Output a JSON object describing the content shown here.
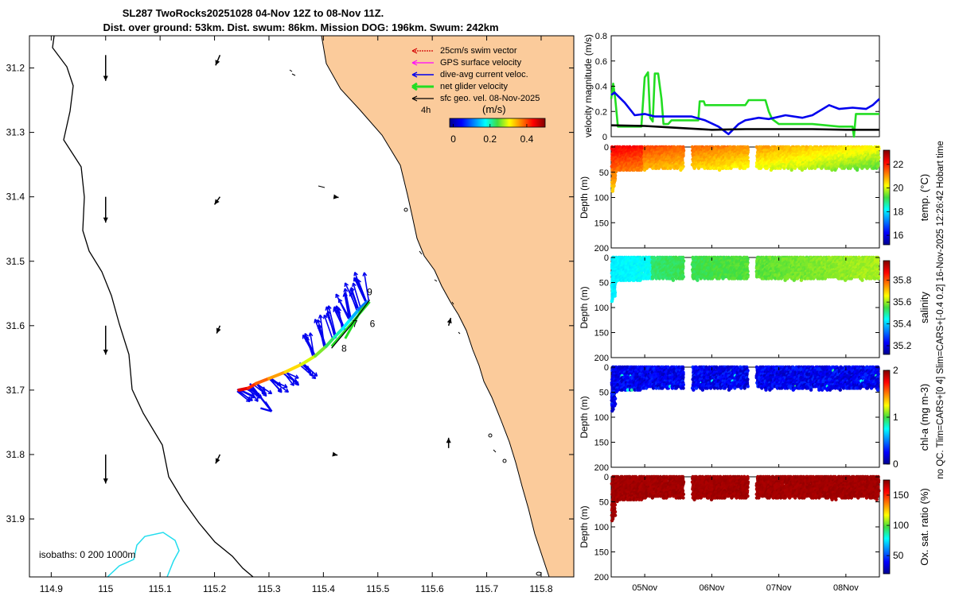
{
  "title": {
    "line1": "SL287 TwoRocks20251028 04-Nov 12Z to 08-Nov 11Z.",
    "line2": "Dist. over ground: 53km. Dist. swum: 86km. Mission DOG: 196km. Swum: 242km"
  },
  "side_note": "no QC. Tlim=CARS+[0 4] Slim=CARS+[-0.4 0.2] 16-Nov-2025 12:26:42 Hobart time",
  "colors": {
    "land": "#fbcb9b",
    "swim": "#d40000",
    "gps": "#ff00ff",
    "dive": "#0000ee",
    "net": "#22dd22",
    "sfc": "#000000",
    "isobath": "#22ddee"
  },
  "chart_data": [
    {
      "type": "map",
      "name": "track-map",
      "lon_ticks": [
        "114.9",
        "115",
        "115.1",
        "115.2",
        "115.3",
        "115.4",
        "115.5",
        "115.6",
        "115.7",
        "115.8"
      ],
      "lat_ticks": [
        "31.2",
        "31.3",
        "31.4",
        "31.5",
        "31.6",
        "31.7",
        "31.8",
        "31.9"
      ],
      "lon_range": [
        114.86,
        115.86
      ],
      "lat_range": [
        31.15,
        31.99
      ],
      "legend": {
        "items": [
          {
            "key": "swim",
            "label": "25cm/s swim vector"
          },
          {
            "key": "gps",
            "label": "GPS surface velocity"
          },
          {
            "key": "dive",
            "label": "dive-avg current veloc."
          },
          {
            "key": "net",
            "label": "net glider velocity"
          },
          {
            "key": "sfc",
            "label": "sfc geo. vel. 08-Nov-2025"
          }
        ],
        "timestep": "4h",
        "colorbar_title": "(m/s)",
        "colorbar_ticks": [
          "0",
          "0.2",
          "0.4"
        ],
        "colorbar_range": [
          -0.02,
          0.5
        ]
      },
      "isobath_note": "isobaths: 0   200  1000m",
      "waypoints": [
        {
          "label": "9",
          "lon": 115.485,
          "lat": 31.553
        },
        {
          "label": "7",
          "lon": 115.458,
          "lat": 31.602
        },
        {
          "label": "6",
          "lon": 115.49,
          "lat": 31.602
        },
        {
          "label": "8",
          "lon": 115.438,
          "lat": 31.64
        }
      ],
      "track": [
        [
          115.245,
          31.7
        ],
        [
          115.262,
          31.697
        ],
        [
          115.276,
          31.69
        ],
        [
          115.3,
          31.682
        ],
        [
          115.33,
          31.672
        ],
        [
          115.36,
          31.66
        ],
        [
          115.385,
          31.647
        ],
        [
          115.405,
          31.632
        ],
        [
          115.42,
          31.618
        ],
        [
          115.435,
          31.605
        ],
        [
          115.45,
          31.59
        ],
        [
          115.465,
          31.575
        ],
        [
          115.48,
          31.563
        ]
      ],
      "surface_vectors": [
        {
          "lon": 115.0,
          "lat": 31.18,
          "dlon": 0.0,
          "dlat": 0.04
        },
        {
          "lon": 115.0,
          "lat": 31.4,
          "dlon": 0.0,
          "dlat": 0.04
        },
        {
          "lon": 115.0,
          "lat": 31.6,
          "dlon": 0.0,
          "dlat": 0.045
        },
        {
          "lon": 115.0,
          "lat": 31.8,
          "dlon": 0.0,
          "dlat": 0.045
        },
        {
          "lon": 115.21,
          "lat": 31.18,
          "dlon": -0.008,
          "dlat": 0.016
        },
        {
          "lon": 115.21,
          "lat": 31.4,
          "dlon": -0.01,
          "dlat": 0.012
        },
        {
          "lon": 115.21,
          "lat": 31.6,
          "dlon": -0.006,
          "dlat": 0.012
        },
        {
          "lon": 115.21,
          "lat": 31.8,
          "dlon": -0.008,
          "dlat": 0.014
        },
        {
          "lon": 115.42,
          "lat": 31.4,
          "dlon": 0.008,
          "dlat": 0.001
        },
        {
          "lon": 115.42,
          "lat": 31.8,
          "dlon": 0.006,
          "dlat": 0.001
        },
        {
          "lon": 115.63,
          "lat": 31.6,
          "dlon": 0.004,
          "dlat": -0.012
        },
        {
          "lon": 115.63,
          "lat": 31.79,
          "dlon": 0.0,
          "dlat": -0.016
        }
      ]
    },
    {
      "type": "line",
      "name": "velocity-magnitude",
      "ylabel": "velocity magnitude (m/s)",
      "y_ticks": [
        "0",
        "0.2",
        "0.4",
        "0.6",
        "0.8"
      ],
      "ylim": [
        0,
        0.8
      ],
      "xlim": [
        0,
        4.0
      ],
      "series": [
        {
          "name": "net glider velocity",
          "color": "#22dd22",
          "x": [
            0,
            0.03,
            0.06,
            0.1,
            0.3,
            0.45,
            0.5,
            0.55,
            0.58,
            0.62,
            0.65,
            0.7,
            0.75,
            0.78,
            0.8,
            0.85,
            0.9,
            1.0,
            1.1,
            1.2,
            1.3,
            1.32,
            1.38,
            1.4,
            1.5,
            1.6,
            1.8,
            1.9,
            2.0,
            2.05,
            2.1,
            2.3,
            2.35,
            2.4,
            2.5,
            2.6,
            3.0,
            3.4,
            3.6,
            3.62,
            3.65,
            3.7,
            3.8,
            3.9,
            4.0
          ],
          "y": [
            0.3,
            0.42,
            0.3,
            0.08,
            0.08,
            0.08,
            0.47,
            0.51,
            0.15,
            0.12,
            0.5,
            0.5,
            0.3,
            0.1,
            0.1,
            0.1,
            0.13,
            0.13,
            0.13,
            0.13,
            0.13,
            0.28,
            0.28,
            0.25,
            0.25,
            0.25,
            0.25,
            0.25,
            0.25,
            0.29,
            0.29,
            0.29,
            0.2,
            0.14,
            0.1,
            0.1,
            0.1,
            0.08,
            0.08,
            0.0,
            0.18,
            0.18,
            0.18,
            0.18,
            0.18
          ]
        },
        {
          "name": "dive-avg current veloc.",
          "color": "#0000ee",
          "x": [
            0,
            0.05,
            0.2,
            0.35,
            0.5,
            0.65,
            0.8,
            1.0,
            1.2,
            1.4,
            1.6,
            1.75,
            1.9,
            2.0,
            2.2,
            2.35,
            2.6,
            2.85,
            3.0,
            3.25,
            3.4,
            3.6,
            3.8,
            3.9,
            4.0
          ],
          "y": [
            0.33,
            0.35,
            0.27,
            0.17,
            0.18,
            0.16,
            0.16,
            0.16,
            0.16,
            0.13,
            0.08,
            0.02,
            0.1,
            0.13,
            0.15,
            0.14,
            0.17,
            0.15,
            0.17,
            0.25,
            0.22,
            0.23,
            0.22,
            0.25,
            0.3
          ]
        },
        {
          "name": "sfc geo. vel.",
          "color": "#000000",
          "x": [
            0,
            0.5,
            1.0,
            1.5,
            2.0,
            2.5,
            3.0,
            3.5,
            4.0
          ],
          "y": [
            0.09,
            0.085,
            0.07,
            0.055,
            0.06,
            0.06,
            0.06,
            0.055,
            0.055
          ]
        }
      ]
    },
    {
      "type": "heatmap",
      "name": "temperature-section",
      "ylabel": "Depth (m)",
      "y_ticks": [
        "0",
        "50",
        "100",
        "150",
        "200"
      ],
      "ylim": [
        0,
        200
      ],
      "colorbar_label": "temp. (°C)",
      "colorbar_ticks": [
        "16",
        "18",
        "20",
        "22"
      ],
      "colorbar_range": [
        15.2,
        23.2
      ],
      "value_start": 21.9,
      "value_end": 20.2
    },
    {
      "type": "heatmap",
      "name": "salinity-section",
      "ylabel": "Depth (m)",
      "y_ticks": [
        "0",
        "50",
        "100",
        "150",
        "200"
      ],
      "ylim": [
        0,
        200
      ],
      "colorbar_label": "salinity",
      "colorbar_ticks": [
        "35.2",
        "35.4",
        "35.6",
        "35.8"
      ],
      "colorbar_range": [
        35.12,
        35.98
      ],
      "value_start": 35.48,
      "value_end": 35.58
    },
    {
      "type": "heatmap",
      "name": "chla-section",
      "ylabel": "Depth (m)",
      "y_ticks": [
        "0",
        "50",
        "100",
        "150",
        "200"
      ],
      "ylim": [
        0,
        200
      ],
      "colorbar_label": "chl-a (mg m-3)",
      "colorbar_ticks": [
        "0",
        "1",
        "2"
      ],
      "colorbar_range": [
        0,
        2
      ],
      "value_start": 0.22,
      "value_end": 0.22
    },
    {
      "type": "heatmap",
      "name": "oxygen-section",
      "ylabel": "Depth (m)",
      "y_ticks": [
        "0",
        "50",
        "100",
        "150",
        "200"
      ],
      "ylim": [
        0,
        200
      ],
      "colorbar_label": "Ox. sat. ratio (%)",
      "colorbar_ticks": [
        "50",
        "100",
        "150"
      ],
      "colorbar_range": [
        20,
        175
      ],
      "value_start": 170,
      "value_end": 170
    },
    {
      "type": "axis",
      "name": "time-axis",
      "x_ticks": [
        "05Nov",
        "06Nov",
        "07Nov",
        "08Nov"
      ],
      "x_tick_days": [
        0.5,
        1.5,
        2.5,
        3.5
      ],
      "data_gaps_days": [
        [
          1.1,
          1.2
        ],
        [
          2.05,
          2.18
        ]
      ],
      "cast_profile_top_depth_m": 40,
      "initial_profile_depth_m": 95
    }
  ]
}
